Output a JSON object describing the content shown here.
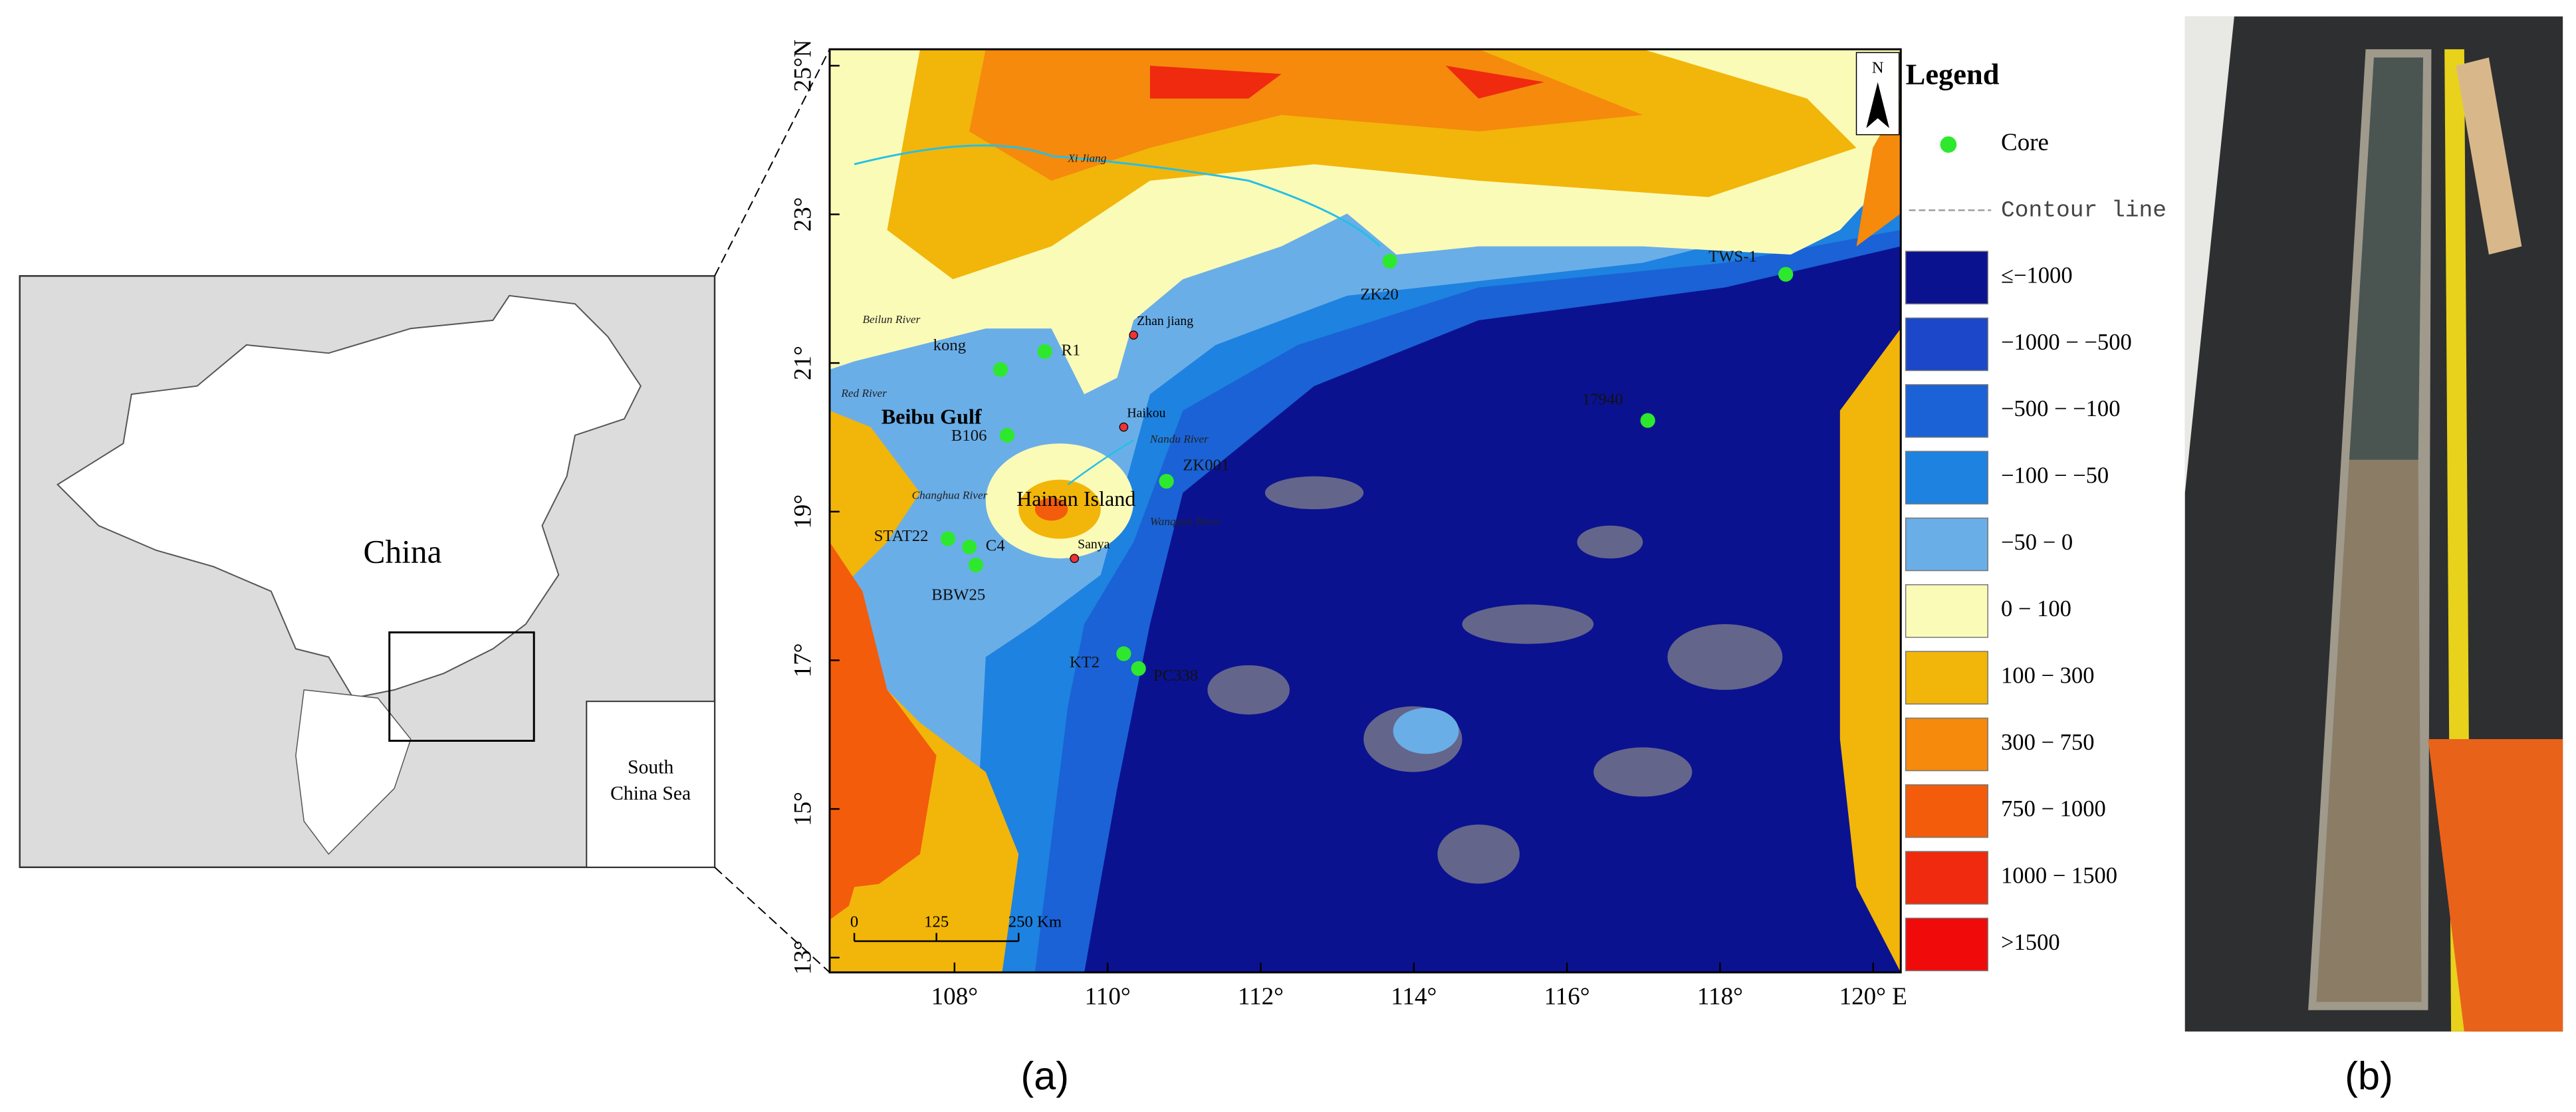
{
  "panels": {
    "a": "(a)",
    "b": "(b)"
  },
  "inset": {
    "country": "China",
    "sea": [
      "South",
      "China Sea"
    ]
  },
  "map": {
    "lat_ticks": [
      {
        "value": 25,
        "label": "25°N"
      },
      {
        "value": 23,
        "label": "23°"
      },
      {
        "value": 21,
        "label": "21°"
      },
      {
        "value": 19,
        "label": "19°"
      },
      {
        "value": 17,
        "label": "17°"
      },
      {
        "value": 15,
        "label": "15°"
      },
      {
        "value": 13,
        "label": "13°"
      }
    ],
    "lon_ticks": [
      {
        "value": 108,
        "label": "108°"
      },
      {
        "value": 110,
        "label": "110°"
      },
      {
        "value": 112,
        "label": "112°"
      },
      {
        "value": 114,
        "label": "114°"
      },
      {
        "value": 116,
        "label": "116°"
      },
      {
        "value": 118,
        "label": "118°"
      },
      {
        "value": 120,
        "label": "120° E"
      }
    ],
    "north": "N",
    "scale_bar": [
      "0",
      "125",
      "250 Km"
    ],
    "places": [
      "Beibu  Gulf",
      "Hainan Island"
    ],
    "rivers": [
      "Xi Jiang",
      "Beilun River",
      "Red River",
      "Nandu River",
      "Changhua River",
      "Wanquan River"
    ],
    "cities": [
      "Zhan jiang",
      "Haikou",
      "Sanya"
    ],
    "cores": [
      "ZK20",
      "TWS-1",
      "R1",
      "kong",
      "17940",
      "B106",
      "ZK001",
      "STAT22",
      "C4",
      "BBW25",
      "KT2",
      "PC338"
    ],
    "core_color": "#2ee82e"
  },
  "legend": {
    "title": "Legend",
    "core": "Core",
    "contour": "Contour line",
    "classes": [
      {
        "label": "≤−1000",
        "color": "#0b128f"
      },
      {
        "label": "−1000 − −500",
        "color": "#1c47c8"
      },
      {
        "label": "−500 − −100",
        "color": "#1a62d6"
      },
      {
        "label": "−100 − −50",
        "color": "#1e82e0"
      },
      {
        "label": "−50 − 0",
        "color": "#6aaee8"
      },
      {
        "label": "0 − 100",
        "color": "#fbfbb8"
      },
      {
        "label": "100 − 300",
        "color": "#f2b50a"
      },
      {
        "label": "300 − 750",
        "color": "#f58a0c"
      },
      {
        "label": "750 − 1000",
        "color": "#f35c0a"
      },
      {
        "label": "1000 − 1500",
        "color": "#ef2a0e"
      },
      {
        "label": ">1500",
        "color": "#f00a0a"
      }
    ]
  }
}
